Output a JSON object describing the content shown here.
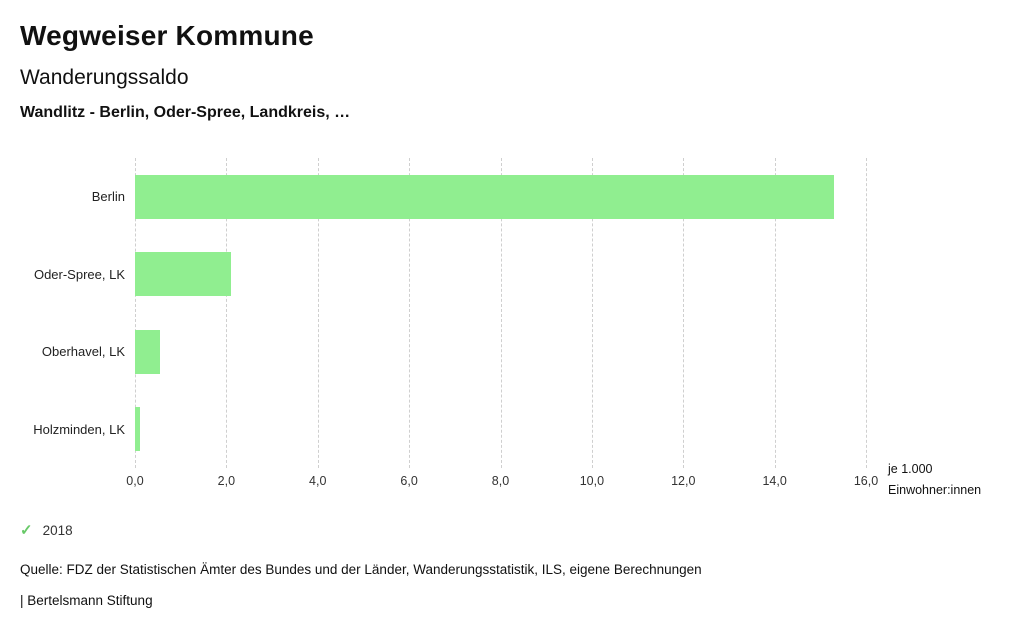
{
  "header": {
    "title": "Wegweiser Kommune",
    "subtitle": "Wanderungssaldo",
    "selection": "Wandlitz - Berlin, Oder-Spree, Landkreis, …"
  },
  "chart_data": {
    "type": "bar",
    "orientation": "horizontal",
    "title": "Wanderungssaldo",
    "categories": [
      "Berlin",
      "Oder-Spree, LK",
      "Oberhavel, LK",
      "Holzminden, LK"
    ],
    "values": [
      15.3,
      2.1,
      0.55,
      0.1
    ],
    "xlim": [
      0,
      16
    ],
    "xticks": [
      0,
      2,
      4,
      6,
      8,
      10,
      12,
      14,
      16
    ],
    "xtick_labels": [
      "0,0",
      "2,0",
      "4,0",
      "6,0",
      "8,0",
      "10,0",
      "12,0",
      "14,0",
      "16,0"
    ],
    "xlabel": "je 1.000 Einwohner:innen",
    "unit_label_line1": "je 1.000",
    "unit_label_line2": "Einwohner:innen",
    "bar_color": "#90ee90",
    "grid": "vertical-dashed",
    "legend_position": "bottom"
  },
  "legend": {
    "check_icon": "✓",
    "check_color": "#68c968",
    "year": "2018"
  },
  "footer": {
    "source": "Quelle: FDZ der Statistischen Ämter des Bundes und der Länder, Wanderungsstatistik, ILS, eigene Berechnungen",
    "attribution": "| Bertelsmann Stiftung"
  }
}
